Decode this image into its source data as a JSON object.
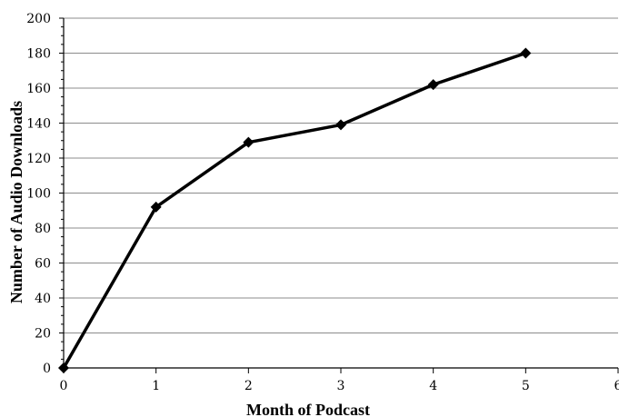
{
  "chart_data": {
    "type": "line",
    "title": "",
    "xlabel": "Month of Podcast",
    "ylabel": "Number of Audio Downloads",
    "xlim": [
      0,
      6
    ],
    "ylim": [
      0,
      200
    ],
    "xticks": [
      0,
      1,
      2,
      3,
      4,
      5,
      6
    ],
    "yticks": [
      0,
      20,
      40,
      60,
      80,
      100,
      120,
      140,
      160,
      180,
      200
    ],
    "grid": true,
    "legend": "none",
    "series": [
      {
        "x": [
          0,
          1,
          2,
          3,
          4,
          5
        ],
        "values": [
          0,
          92,
          129,
          139,
          162,
          180
        ],
        "color": "#000000",
        "marker": "diamond"
      }
    ]
  }
}
